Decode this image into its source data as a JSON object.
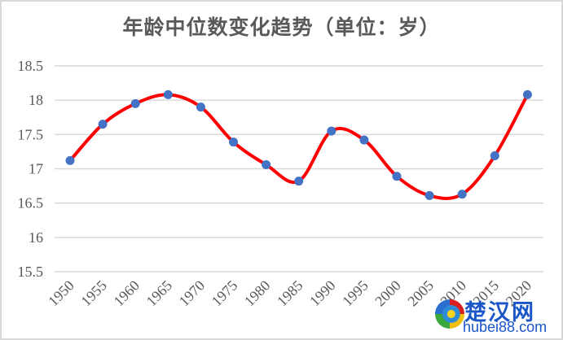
{
  "chart_data": {
    "type": "line",
    "title": "年龄中位数变化趋势（单位：岁）",
    "xlabel": "",
    "ylabel": "",
    "categories": [
      "1950",
      "1955",
      "1960",
      "1965",
      "1970",
      "1975",
      "1980",
      "1985",
      "1990",
      "1995",
      "2000",
      "2005",
      "2010",
      "2015",
      "2020"
    ],
    "series": [
      {
        "name": "年龄中位数",
        "values": [
          17.12,
          17.65,
          17.95,
          18.08,
          17.9,
          17.39,
          17.06,
          16.82,
          17.55,
          17.42,
          16.89,
          16.61,
          16.63,
          17.19,
          18.08
        ],
        "line_color": "#ff0000",
        "marker_color": "#4472c4",
        "smooth": true
      }
    ],
    "ylim": [
      15.5,
      18.5
    ],
    "yticks": [
      "18.5",
      "18",
      "17.5",
      "17",
      "16.5",
      "16",
      "15.5"
    ],
    "grid": true,
    "legend": "none",
    "xtick_rotation": -45
  },
  "watermark": {
    "chinese": "楚汉网",
    "domain": "hubei88.com"
  }
}
